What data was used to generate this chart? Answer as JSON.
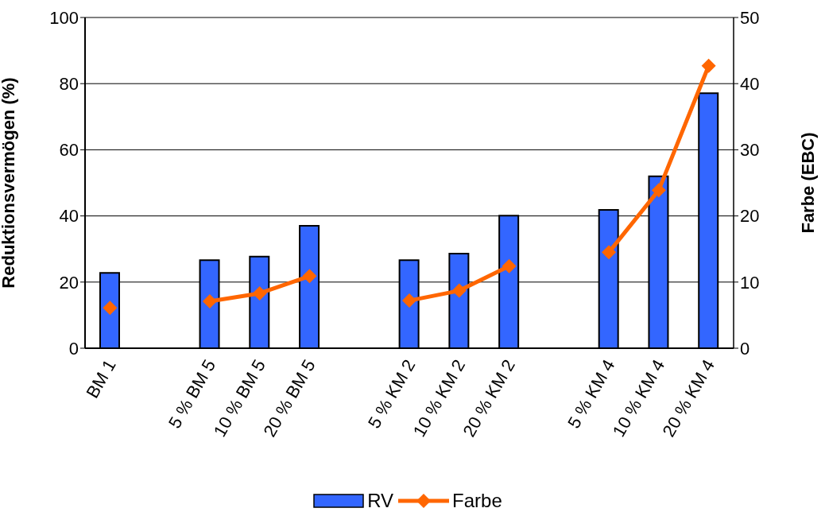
{
  "chart_data": {
    "type": "bar",
    "categories": [
      "BM 1",
      null,
      "5 % BM 5",
      "10 % BM 5",
      "20 % BM 5",
      null,
      "5 % KM 2",
      "10 % KM 2",
      "20 % KM 2",
      null,
      "5 % KM 4",
      "10 % KM 4",
      "20 % KM 4"
    ],
    "series": [
      {
        "name": "RV",
        "color": "#3366ff",
        "values": [
          22.8,
          null,
          26.6,
          27.7,
          37.0,
          null,
          26.6,
          28.6,
          40.1,
          null,
          41.8,
          52,
          77.1
        ]
      },
      {
        "name": "Farbe",
        "type": "line",
        "axis": "y2",
        "color": "#ff6600",
        "marker": "diamond",
        "values": [
          6.1,
          null,
          7.1,
          8.3,
          10.9,
          null,
          7.2,
          8.7,
          12.4,
          null,
          14.5,
          23.9,
          42.7
        ]
      }
    ],
    "ylabel": "Reduktionsvermögen (%)",
    "y2label": "Farbe (EBC)",
    "ylim": [
      0,
      100
    ],
    "yticks": [
      0,
      20,
      40,
      60,
      80,
      100
    ],
    "y2lim": [
      0,
      50
    ],
    "y2ticks": [
      0,
      10,
      20,
      30,
      40,
      50
    ],
    "grid": "y",
    "legend": "bottom"
  }
}
